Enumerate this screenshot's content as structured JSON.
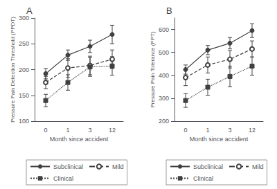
{
  "chart_data": [
    {
      "type": "line",
      "title": "A",
      "x_label": "Month since accident",
      "y_label": "Pressure Pain Detection Threshold (PPDT)",
      "categories": [
        "0",
        "1",
        "3",
        "12"
      ],
      "ylim": [
        100,
        300
      ],
      "yticks": [
        100,
        150,
        200,
        250,
        300
      ],
      "grid": false,
      "legend": "bottom",
      "color": "#404040",
      "series": [
        {
          "name": "Subclinical",
          "values": [
            192,
            228,
            245,
            268
          ],
          "yerr": [
            10,
            10,
            12,
            18
          ],
          "line_style": "solid",
          "marker": "circle"
        },
        {
          "name": "Mild",
          "values": [
            175,
            203,
            208,
            220
          ],
          "yerr": [
            12,
            18,
            18,
            18
          ],
          "line_style": "dashed",
          "marker": "circle_open"
        },
        {
          "name": "Clinical",
          "values": [
            140,
            175,
            205,
            207
          ],
          "yerr": [
            12,
            15,
            18,
            18
          ],
          "line_style": "dotted",
          "marker": "square"
        }
      ]
    },
    {
      "type": "line",
      "title": "B",
      "x_label": "Month since accident",
      "y_label": "Pressure Pain Tolerance (PPT)",
      "categories": [
        "0",
        "1",
        "3",
        "12"
      ],
      "ylim": [
        200,
        650
      ],
      "yticks": [
        200,
        300,
        400,
        500,
        600
      ],
      "grid": false,
      "legend": "bottom",
      "color": "#404040",
      "series": [
        {
          "name": "Subclinical",
          "values": [
            425,
            510,
            540,
            595
          ],
          "yerr": [
            20,
            20,
            25,
            30
          ],
          "line_style": "solid",
          "marker": "circle"
        },
        {
          "name": "Mild",
          "values": [
            390,
            445,
            470,
            515
          ],
          "yerr": [
            35,
            35,
            38,
            35
          ],
          "line_style": "dashed",
          "marker": "circle_open"
        },
        {
          "name": "Clinical",
          "values": [
            290,
            348,
            395,
            440
          ],
          "yerr": [
            30,
            35,
            45,
            40
          ],
          "line_style": "dotted",
          "marker": "square"
        }
      ]
    }
  ]
}
